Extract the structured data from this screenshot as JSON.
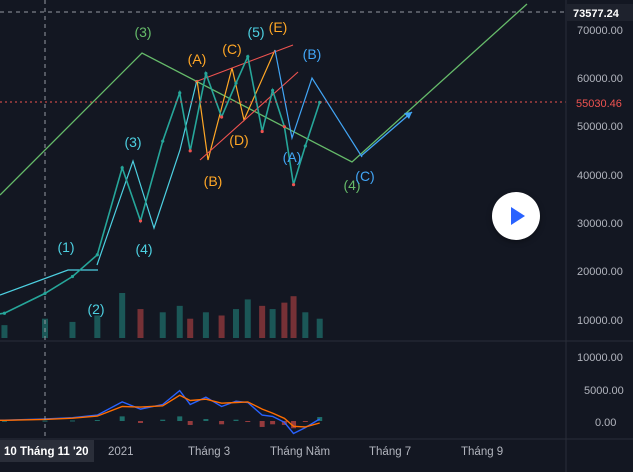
{
  "chart_data": {
    "type": "line",
    "title": "",
    "price_axis": {
      "ticks": [
        "70000.00",
        "60000.00",
        "50000.00",
        "40000.00",
        "30000.00",
        "20000.00",
        "10000.00"
      ],
      "range": [
        0,
        76000
      ],
      "highlight_top": "73577.24",
      "highlight_current": "55030.46"
    },
    "indicator_axis": {
      "ticks": [
        "10000.00",
        "5000.00",
        "0.00"
      ]
    },
    "x_axis": {
      "labels": [
        "10 Tháng 11 '20",
        "2021",
        "Tháng 3",
        "Tháng Năm",
        "Tháng 7",
        "Tháng 9"
      ]
    },
    "wave_labels": [
      {
        "text": "(1)",
        "color": "#4dd0e1"
      },
      {
        "text": "(2)",
        "color": "#4dd0e1"
      },
      {
        "text": "(3)",
        "color": "#4dd0e1"
      },
      {
        "text": "(4)",
        "color": "#4dd0e1"
      },
      {
        "text": "(5)",
        "color": "#4dd0e1"
      },
      {
        "text": "(3)",
        "color": "#66bb6a"
      },
      {
        "text": "(4)",
        "color": "#66bb6a"
      },
      {
        "text": "(A)",
        "color": "#ffa726"
      },
      {
        "text": "(B)",
        "color": "#ffa726"
      },
      {
        "text": "(C)",
        "color": "#ffa726"
      },
      {
        "text": "(D)",
        "color": "#ffa726"
      },
      {
        "text": "(E)",
        "color": "#ffa726"
      },
      {
        "text": "(A)",
        "color": "#42a5f5"
      },
      {
        "text": "(B)",
        "color": "#42a5f5"
      },
      {
        "text": "(C)",
        "color": "#42a5f5"
      }
    ],
    "price_series": {
      "name": "",
      "x": [
        "2020-09-15",
        "2020-10-10",
        "2020-11-10",
        "2020-12-01",
        "2020-12-20",
        "2021-01-08",
        "2021-01-22",
        "2021-02-08",
        "2021-02-21",
        "2021-03-01",
        "2021-03-13",
        "2021-03-25",
        "2021-04-05",
        "2021-04-14",
        "2021-04-25",
        "2021-05-03",
        "2021-05-12",
        "2021-05-19",
        "2021-05-28",
        "2021-06-08"
      ],
      "values": [
        10500,
        11400,
        15500,
        19000,
        23500,
        41500,
        30500,
        47000,
        57000,
        45000,
        61000,
        52000,
        59000,
        64500,
        49000,
        57500,
        50000,
        38000,
        46000,
        55030
      ]
    },
    "volume_series": {
      "name": "",
      "values": [
        3,
        4,
        6,
        5,
        7,
        14,
        9,
        8,
        10,
        6,
        8,
        7,
        9,
        12,
        10,
        9,
        11,
        13,
        8,
        6
      ]
    },
    "indicator_series": [
      {
        "name": "",
        "color": "#2962ff",
        "values": [
          80,
          120,
          300,
          500,
          900,
          2900,
          1800,
          2500,
          4600,
          2500,
          3600,
          2200,
          3000,
          2800,
          900,
          700,
          -200,
          -1900,
          -1000,
          300
        ]
      },
      {
        "name": "",
        "color": "#ff6d00",
        "values": [
          60,
          100,
          240,
          420,
          750,
          2200,
          2100,
          2300,
          3900,
          3100,
          3300,
          2700,
          2800,
          2900,
          1800,
          1200,
          400,
          -800,
          -900,
          -300
        ]
      }
    ],
    "grid": false,
    "colors": {
      "up": "#26a69a",
      "down": "#ef5350",
      "pattern": "#66bb6a",
      "projection": "#42a5f5",
      "channel": "#ef5350"
    }
  }
}
